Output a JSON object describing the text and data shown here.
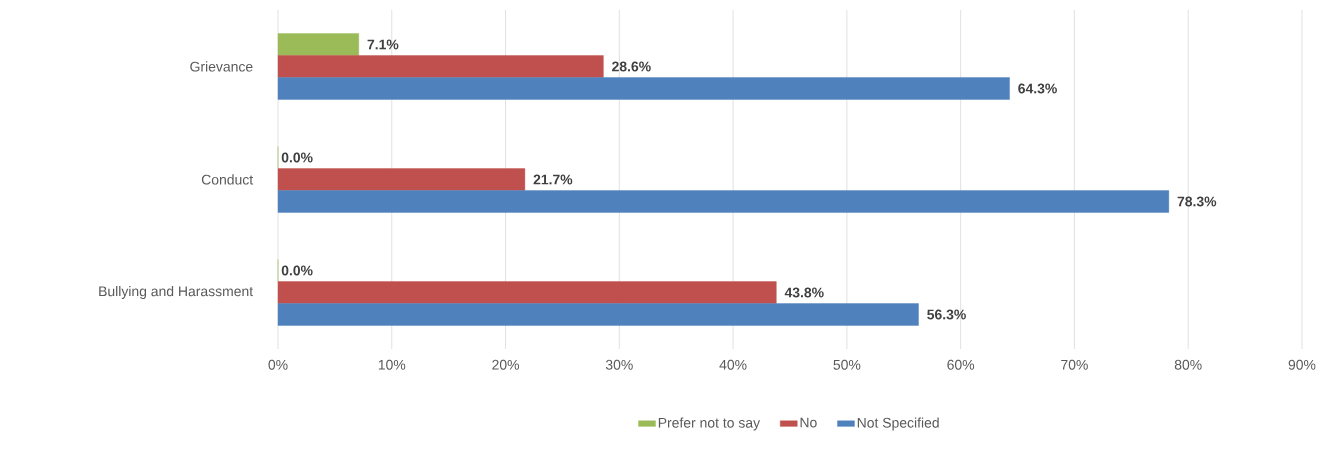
{
  "chart_data": {
    "type": "bar",
    "orientation": "horizontal",
    "categories": [
      "Grievance",
      "Conduct",
      "Bullying and Harassment"
    ],
    "series": [
      {
        "name": "Prefer not to say",
        "color": "#9bbb59",
        "values": [
          7.1,
          0.0,
          0.0
        ],
        "value_labels": [
          "7.1%",
          "0.0%",
          "0.0%"
        ]
      },
      {
        "name": "No",
        "color": "#c0504d",
        "values": [
          28.6,
          21.7,
          43.8
        ],
        "value_labels": [
          "28.6%",
          "21.7%",
          "43.8%"
        ]
      },
      {
        "name": "Not Specified",
        "color": "#4f81bd",
        "values": [
          64.3,
          78.3,
          56.3
        ],
        "value_labels": [
          "64.3%",
          "78.3%",
          "56.3%"
        ]
      }
    ],
    "xlim": [
      0,
      90
    ],
    "xticks": [
      {
        "value": 0,
        "label": "0%"
      },
      {
        "value": 10,
        "label": "10%"
      },
      {
        "value": 20,
        "label": "20%"
      },
      {
        "value": 30,
        "label": "30%"
      },
      {
        "value": 40,
        "label": "40%"
      },
      {
        "value": 50,
        "label": "50%"
      },
      {
        "value": 60,
        "label": "60%"
      },
      {
        "value": 70,
        "label": "70%"
      },
      {
        "value": 80,
        "label": "80%"
      },
      {
        "value": 90,
        "label": "90%"
      }
    ],
    "grid": "x",
    "legend": "bottom"
  }
}
